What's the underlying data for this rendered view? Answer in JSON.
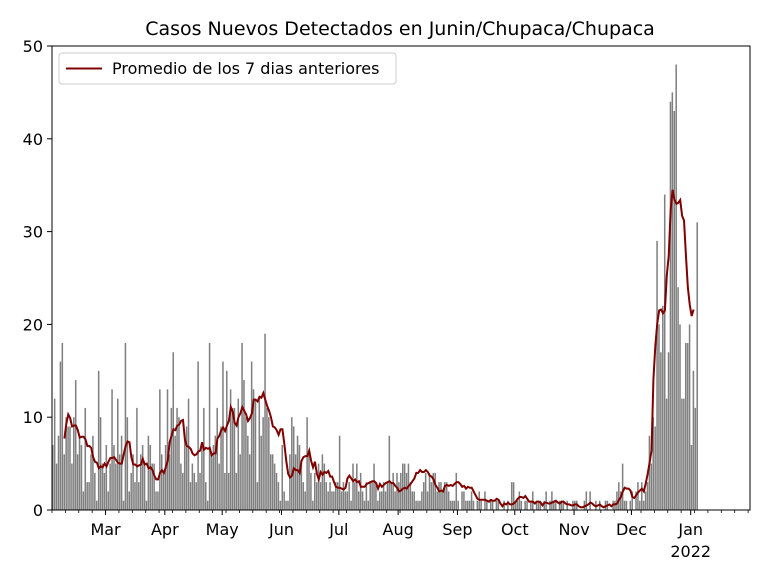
{
  "chart_data": {
    "type": "bar",
    "title": "Casos Nuevos Detectados en Junin/Chupaca/Chupaca",
    "xlabel": "",
    "ylabel": "",
    "ylim": [
      0,
      50
    ],
    "yticks": [
      "0",
      "10",
      "20",
      "30",
      "40",
      "50"
    ],
    "xticks": [
      {
        "label": "Mar",
        "date": "2021-03-01"
      },
      {
        "label": "Apr",
        "date": "2021-04-01"
      },
      {
        "label": "May",
        "date": "2021-05-01"
      },
      {
        "label": "Jun",
        "date": "2021-06-01"
      },
      {
        "label": "Jul",
        "date": "2021-07-01"
      },
      {
        "label": "Aug",
        "date": "2021-08-01"
      },
      {
        "label": "Sep",
        "date": "2021-09-01"
      },
      {
        "label": "Oct",
        "date": "2021-10-01"
      },
      {
        "label": "Nov",
        "date": "2021-11-01"
      },
      {
        "label": "Dec",
        "date": "2021-12-01"
      },
      {
        "label": "Jan",
        "date": "2022-01-01",
        "sublabel": "2022"
      }
    ],
    "start_date": "2021-02-01",
    "end_date": "2022-01-31",
    "legend": {
      "label": "Promedio de los 7 dias anteriores",
      "position": "top-left"
    },
    "grid": false,
    "colors": {
      "bars": "#808080",
      "line": "#800000"
    },
    "daily_cases": [
      7,
      12,
      5,
      8,
      16,
      18,
      6,
      10,
      9,
      9,
      5,
      10,
      14,
      6,
      8,
      7,
      2,
      11,
      3,
      3,
      6,
      8,
      4,
      1,
      15,
      10,
      5,
      4,
      7,
      2,
      5,
      13,
      7,
      5,
      12,
      6,
      8,
      1,
      18,
      10,
      2,
      4,
      6,
      3,
      11,
      3,
      6,
      7,
      5,
      1,
      8,
      7,
      5,
      5,
      2,
      2,
      13,
      6,
      4,
      7,
      13,
      6,
      11,
      17,
      8,
      11,
      10,
      5,
      4,
      8,
      9,
      12,
      3,
      5,
      4,
      3,
      16,
      4,
      7,
      11,
      3,
      1,
      18,
      6,
      7,
      8,
      11,
      5,
      9,
      16,
      4,
      15,
      4,
      13,
      11,
      11,
      4,
      12,
      6,
      18,
      14,
      10,
      8,
      6,
      16,
      13,
      12,
      3,
      12,
      8,
      10,
      19,
      11,
      10,
      6,
      6,
      5,
      4,
      3,
      1,
      7,
      2,
      1,
      1,
      6,
      10,
      9,
      6,
      8,
      7,
      5,
      3,
      2,
      10,
      6,
      4,
      1,
      4,
      3,
      5,
      3,
      6,
      5,
      3,
      2,
      3,
      2,
      2,
      3,
      3,
      8,
      2,
      3,
      2,
      2,
      3,
      1,
      5,
      3,
      5,
      2,
      4,
      2,
      1,
      3,
      1,
      3,
      3,
      5,
      3,
      1,
      2,
      2,
      3,
      2,
      3,
      8,
      3,
      4,
      2,
      4,
      3,
      4,
      5,
      5,
      4,
      5,
      3,
      2,
      2,
      1,
      1,
      1,
      2,
      3,
      4,
      2,
      4,
      3,
      4,
      4,
      2,
      3,
      3,
      2,
      3,
      3,
      2,
      1,
      1,
      1,
      4,
      1,
      0,
      2,
      2,
      1,
      1,
      1,
      2,
      1,
      0,
      1,
      2,
      1,
      0,
      2,
      1,
      0,
      1,
      1,
      0,
      1,
      1,
      0,
      0,
      1,
      0,
      1,
      0,
      3,
      3,
      1,
      1,
      2,
      1,
      0,
      1,
      1,
      0,
      1,
      2,
      0,
      1,
      1,
      1,
      0,
      1,
      2,
      0,
      1,
      2,
      1,
      1,
      0,
      1,
      1,
      1,
      0,
      1,
      0,
      0,
      1,
      1,
      1,
      0,
      0,
      0,
      1,
      2,
      0,
      2,
      0,
      0,
      1,
      0,
      1,
      0,
      0,
      1,
      1,
      0,
      0,
      1,
      1,
      2,
      3,
      2,
      5,
      1,
      1,
      0,
      1,
      2,
      0,
      2,
      3,
      1,
      3,
      1,
      2,
      3,
      8,
      5,
      10,
      9,
      29,
      20,
      17,
      22,
      34,
      12,
      17,
      44,
      45,
      43,
      48,
      24,
      20,
      12,
      12,
      18,
      18,
      20,
      7,
      15,
      11,
      31
    ],
    "rolling_avg_7d": [
      null,
      null,
      null,
      null,
      null,
      null,
      7.7,
      9.3,
      10.3,
      9.9,
      9.0,
      9.1,
      9.1,
      8.6,
      7.8,
      7.9,
      7.9,
      7.6,
      6.9,
      6.9,
      6.7,
      5.7,
      5.2,
      5.1,
      4.5,
      4.7,
      4.6,
      5.0,
      4.7,
      5.2,
      5.6,
      5.6,
      5.7,
      5.4,
      5.1,
      5.0,
      5.0,
      6.0,
      6.9,
      7.4,
      7.3,
      5.7,
      4.9,
      4.9,
      4.7,
      4.8,
      4.9,
      5.5,
      4.9,
      5.0,
      4.5,
      4.6,
      4.3,
      3.7,
      3.3,
      3.3,
      4.0,
      4.3,
      4.0,
      4.6,
      5.3,
      7.3,
      8.0,
      8.7,
      8.6,
      9.1,
      9.2,
      9.6,
      9.7,
      7.6,
      6.9,
      6.8,
      6.6,
      6.1,
      5.9,
      6.0,
      6.3,
      6.4,
      7.3,
      6.5,
      6.7,
      6.6,
      6.7,
      5.9,
      6.1,
      6.1,
      7.7,
      8.0,
      8.6,
      8.9,
      8.5,
      9.1,
      9.6,
      11.1,
      10.6,
      9.4,
      9.1,
      10.0,
      10.4,
      11.1,
      10.7,
      10.3,
      9.6,
      9.9,
      10.4,
      11.9,
      11.9,
      11.7,
      12.2,
      12.1,
      12.6,
      11.9,
      11.2,
      10.7,
      10.0,
      9.0,
      8.9,
      8.6,
      8.1,
      8.7,
      8.7,
      7.1,
      5.3,
      3.9,
      3.5,
      3.7,
      4.5,
      4.3,
      4.3,
      4.0,
      5.3,
      5.7,
      5.8,
      5.8,
      6.4,
      5.3,
      4.6,
      5.2,
      3.9,
      3.3,
      4.1,
      3.8,
      4.1,
      4.0,
      4.2,
      3.6,
      3.6,
      3.0,
      2.5,
      2.4,
      2.4,
      2.3,
      2.2,
      2.4,
      3.4,
      3.7,
      3.4,
      3.1,
      3.3,
      3.0,
      3.1,
      2.5,
      2.5,
      2.5,
      2.8,
      2.9,
      3.0,
      3.1,
      3.1,
      2.9,
      2.3,
      2.8,
      2.5,
      2.7,
      2.9,
      3.0,
      3.1,
      2.9,
      2.9,
      2.6,
      2.4,
      2.0,
      2.1,
      2.3,
      2.4,
      2.3,
      2.6,
      2.8,
      3.1,
      3.4,
      4.0,
      4.0,
      4.3,
      4.1,
      4.1,
      4.3,
      4.1,
      3.7,
      3.6,
      3.3,
      2.7,
      2.4,
      2.0,
      2.1,
      2.0,
      2.6,
      2.7,
      2.6,
      2.7,
      2.6,
      2.8,
      3.0,
      3.0,
      2.8,
      2.5,
      2.6,
      2.3,
      2.5,
      2.4,
      2.4,
      2.0,
      1.6,
      1.2,
      1.1,
      1.1,
      1.1,
      1.1,
      1.0,
      0.9,
      1.1,
      1.0,
      1.0,
      1.2,
      1.1,
      0.7,
      0.4,
      0.7,
      0.6,
      0.8,
      0.6,
      0.6,
      0.7,
      0.9,
      1.2,
      1.4,
      1.4,
      1.3,
      1.5,
      1.2,
      0.9,
      0.9,
      0.9,
      0.7,
      0.9,
      0.9,
      0.8,
      0.5,
      0.8,
      0.8,
      0.7,
      0.7,
      0.8,
      0.9,
      1.0,
      0.8,
      0.7,
      0.9,
      0.9,
      0.7,
      0.6,
      0.6,
      0.5,
      0.5,
      0.6,
      0.6,
      0.4,
      0.3,
      0.3,
      0.4,
      0.5,
      0.6,
      0.8,
      0.7,
      0.5,
      0.4,
      0.5,
      0.6,
      0.4,
      0.3,
      0.4,
      0.5,
      0.6,
      0.4,
      0.6,
      0.6,
      0.7,
      1.1,
      1.4,
      2.0,
      2.4,
      2.3,
      2.3,
      2.1,
      1.4,
      1.3,
      1.6,
      1.9,
      2.1,
      2.3,
      2.0,
      2.9,
      3.9,
      5.1,
      6.4,
      14.1,
      17.7,
      20.1,
      21.5,
      21.6,
      21.2,
      21.5,
      25.3,
      27.4,
      32.3,
      34.5,
      33.4,
      33.0,
      33.1,
      33.4,
      31.7,
      31.2,
      27.4,
      24.0,
      22.1,
      20.9,
      21.6
    ]
  }
}
